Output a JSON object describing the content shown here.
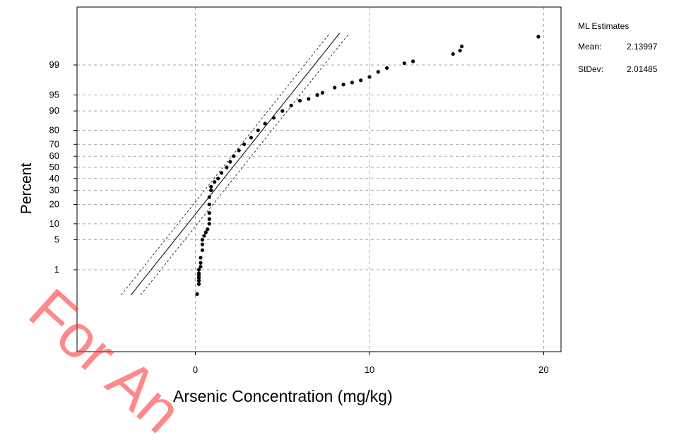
{
  "chart_data": {
    "type": "scatter",
    "title": "",
    "xlabel": "Arsenic Concentration (mg/kg)",
    "ylabel": "Percent",
    "xlim": [
      -6.8,
      21.0
    ],
    "x_ticks": [
      0,
      10,
      20
    ],
    "y_scale": "normal-probability",
    "y_ticks": [
      1,
      5,
      10,
      20,
      30,
      40,
      50,
      60,
      70,
      80,
      90,
      95,
      99
    ],
    "grid": true,
    "fit_line": {
      "mean": 2.13997,
      "stdev": 2.01485
    },
    "series": [
      {
        "points": [
          [
            0.1,
            0.2
          ],
          [
            0.2,
            0.4
          ],
          [
            0.2,
            0.5
          ],
          [
            0.2,
            0.6
          ],
          [
            0.2,
            0.7
          ],
          [
            0.2,
            0.8
          ],
          [
            0.2,
            1.0
          ],
          [
            0.3,
            1.2
          ],
          [
            0.3,
            1.5
          ],
          [
            0.3,
            2
          ],
          [
            0.4,
            3
          ],
          [
            0.4,
            4
          ],
          [
            0.4,
            5
          ],
          [
            0.5,
            6
          ],
          [
            0.6,
            7
          ],
          [
            0.7,
            8
          ],
          [
            0.8,
            10
          ],
          [
            0.8,
            12
          ],
          [
            0.8,
            15
          ],
          [
            0.8,
            20
          ],
          [
            0.8,
            25
          ],
          [
            0.9,
            30
          ],
          [
            0.9,
            33
          ],
          [
            1.1,
            37
          ],
          [
            1.3,
            40
          ],
          [
            1.5,
            45
          ],
          [
            1.8,
            50
          ],
          [
            2.0,
            55
          ],
          [
            2.2,
            60
          ],
          [
            2.5,
            65
          ],
          [
            2.8,
            70
          ],
          [
            3.2,
            75
          ],
          [
            3.6,
            80
          ],
          [
            4.0,
            84
          ],
          [
            4.5,
            87
          ],
          [
            5.0,
            90
          ],
          [
            5.5,
            92
          ],
          [
            6.0,
            93.5
          ],
          [
            6.5,
            94
          ],
          [
            7.0,
            95
          ],
          [
            7.3,
            95.5
          ],
          [
            8.0,
            96.5
          ],
          [
            8.5,
            97
          ],
          [
            9.0,
            97.3
          ],
          [
            9.5,
            97.6
          ],
          [
            10.0,
            98
          ],
          [
            10.5,
            98.5
          ],
          [
            11.0,
            98.8
          ],
          [
            12.0,
            99.1
          ],
          [
            12.5,
            99.2
          ],
          [
            14.8,
            99.5
          ],
          [
            15.2,
            99.6
          ],
          [
            15.3,
            99.7
          ],
          [
            19.7,
            99.85
          ]
        ]
      }
    ]
  },
  "legend": {
    "title": "ML Estimates",
    "mean_label": "Mean:",
    "mean_value": "2.13997",
    "stdev_label": "StDev:",
    "stdev_value": "2.01485"
  },
  "watermark": "For An"
}
